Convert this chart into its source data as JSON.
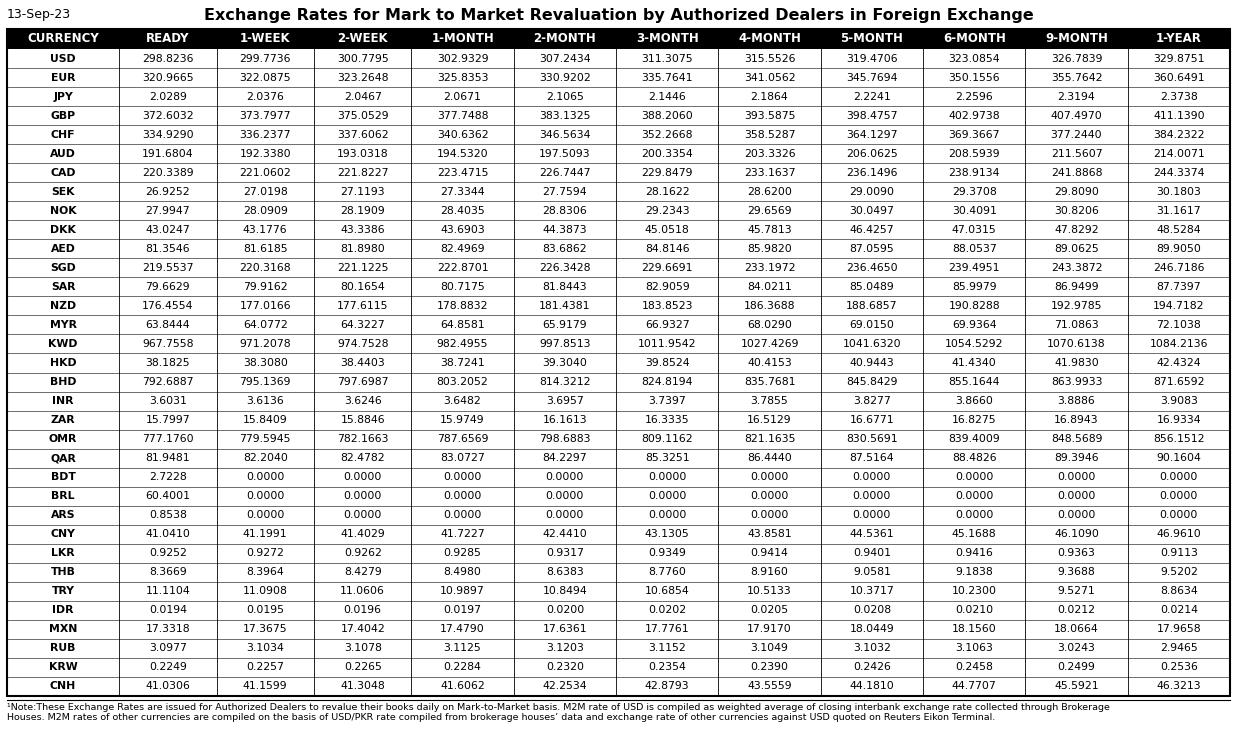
{
  "date": "13-Sep-23",
  "title": "Exchange Rates for Mark to Market Revaluation by Authorized Dealers in Foreign Exchange",
  "columns": [
    "CURRENCY",
    "READY",
    "1-WEEK",
    "2-WEEK",
    "1-MONTH",
    "2-MONTH",
    "3-MONTH",
    "4-MONTH",
    "5-MONTH",
    "6-MONTH",
    "9-MONTH",
    "1-YEAR"
  ],
  "rows": [
    [
      "USD",
      "298.8236",
      "299.7736",
      "300.7795",
      "302.9329",
      "307.2434",
      "311.3075",
      "315.5526",
      "319.4706",
      "323.0854",
      "326.7839",
      "329.8751"
    ],
    [
      "EUR",
      "320.9665",
      "322.0875",
      "323.2648",
      "325.8353",
      "330.9202",
      "335.7641",
      "341.0562",
      "345.7694",
      "350.1556",
      "355.7642",
      "360.6491"
    ],
    [
      "JPY",
      "2.0289",
      "2.0376",
      "2.0467",
      "2.0671",
      "2.1065",
      "2.1446",
      "2.1864",
      "2.2241",
      "2.2596",
      "2.3194",
      "2.3738"
    ],
    [
      "GBP",
      "372.6032",
      "373.7977",
      "375.0529",
      "377.7488",
      "383.1325",
      "388.2060",
      "393.5875",
      "398.4757",
      "402.9738",
      "407.4970",
      "411.1390"
    ],
    [
      "CHF",
      "334.9290",
      "336.2377",
      "337.6062",
      "340.6362",
      "346.5634",
      "352.2668",
      "358.5287",
      "364.1297",
      "369.3667",
      "377.2440",
      "384.2322"
    ],
    [
      "AUD",
      "191.6804",
      "192.3380",
      "193.0318",
      "194.5320",
      "197.5093",
      "200.3354",
      "203.3326",
      "206.0625",
      "208.5939",
      "211.5607",
      "214.0071"
    ],
    [
      "CAD",
      "220.3389",
      "221.0602",
      "221.8227",
      "223.4715",
      "226.7447",
      "229.8479",
      "233.1637",
      "236.1496",
      "238.9134",
      "241.8868",
      "244.3374"
    ],
    [
      "SEK",
      "26.9252",
      "27.0198",
      "27.1193",
      "27.3344",
      "27.7594",
      "28.1622",
      "28.6200",
      "29.0090",
      "29.3708",
      "29.8090",
      "30.1803"
    ],
    [
      "NOK",
      "27.9947",
      "28.0909",
      "28.1909",
      "28.4035",
      "28.8306",
      "29.2343",
      "29.6569",
      "30.0497",
      "30.4091",
      "30.8206",
      "31.1617"
    ],
    [
      "DKK",
      "43.0247",
      "43.1776",
      "43.3386",
      "43.6903",
      "44.3873",
      "45.0518",
      "45.7813",
      "46.4257",
      "47.0315",
      "47.8292",
      "48.5284"
    ],
    [
      "AED",
      "81.3546",
      "81.6185",
      "81.8980",
      "82.4969",
      "83.6862",
      "84.8146",
      "85.9820",
      "87.0595",
      "88.0537",
      "89.0625",
      "89.9050"
    ],
    [
      "SGD",
      "219.5537",
      "220.3168",
      "221.1225",
      "222.8701",
      "226.3428",
      "229.6691",
      "233.1972",
      "236.4650",
      "239.4951",
      "243.3872",
      "246.7186"
    ],
    [
      "SAR",
      "79.6629",
      "79.9162",
      "80.1654",
      "80.7175",
      "81.8443",
      "82.9059",
      "84.0211",
      "85.0489",
      "85.9979",
      "86.9499",
      "87.7397"
    ],
    [
      "NZD",
      "176.4554",
      "177.0166",
      "177.6115",
      "178.8832",
      "181.4381",
      "183.8523",
      "186.3688",
      "188.6857",
      "190.8288",
      "192.9785",
      "194.7182"
    ],
    [
      "MYR",
      "63.8444",
      "64.0772",
      "64.3227",
      "64.8581",
      "65.9179",
      "66.9327",
      "68.0290",
      "69.0150",
      "69.9364",
      "71.0863",
      "72.1038"
    ],
    [
      "KWD",
      "967.7558",
      "971.2078",
      "974.7528",
      "982.4955",
      "997.8513",
      "1011.9542",
      "1027.4269",
      "1041.6320",
      "1054.5292",
      "1070.6138",
      "1084.2136"
    ],
    [
      "HKD",
      "38.1825",
      "38.3080",
      "38.4403",
      "38.7241",
      "39.3040",
      "39.8524",
      "40.4153",
      "40.9443",
      "41.4340",
      "41.9830",
      "42.4324"
    ],
    [
      "BHD",
      "792.6887",
      "795.1369",
      "797.6987",
      "803.2052",
      "814.3212",
      "824.8194",
      "835.7681",
      "845.8429",
      "855.1644",
      "863.9933",
      "871.6592"
    ],
    [
      "INR",
      "3.6031",
      "3.6136",
      "3.6246",
      "3.6482",
      "3.6957",
      "3.7397",
      "3.7855",
      "3.8277",
      "3.8660",
      "3.8886",
      "3.9083"
    ],
    [
      "ZAR",
      "15.7997",
      "15.8409",
      "15.8846",
      "15.9749",
      "16.1613",
      "16.3335",
      "16.5129",
      "16.6771",
      "16.8275",
      "16.8943",
      "16.9334"
    ],
    [
      "OMR",
      "777.1760",
      "779.5945",
      "782.1663",
      "787.6569",
      "798.6883",
      "809.1162",
      "821.1635",
      "830.5691",
      "839.4009",
      "848.5689",
      "856.1512"
    ],
    [
      "QAR",
      "81.9481",
      "82.2040",
      "82.4782",
      "83.0727",
      "84.2297",
      "85.3251",
      "86.4440",
      "87.5164",
      "88.4826",
      "89.3946",
      "90.1604"
    ],
    [
      "BDT",
      "2.7228",
      "0.0000",
      "0.0000",
      "0.0000",
      "0.0000",
      "0.0000",
      "0.0000",
      "0.0000",
      "0.0000",
      "0.0000",
      "0.0000"
    ],
    [
      "BRL",
      "60.4001",
      "0.0000",
      "0.0000",
      "0.0000",
      "0.0000",
      "0.0000",
      "0.0000",
      "0.0000",
      "0.0000",
      "0.0000",
      "0.0000"
    ],
    [
      "ARS",
      "0.8538",
      "0.0000",
      "0.0000",
      "0.0000",
      "0.0000",
      "0.0000",
      "0.0000",
      "0.0000",
      "0.0000",
      "0.0000",
      "0.0000"
    ],
    [
      "CNY",
      "41.0410",
      "41.1991",
      "41.4029",
      "41.7227",
      "42.4410",
      "43.1305",
      "43.8581",
      "44.5361",
      "45.1688",
      "46.1090",
      "46.9610"
    ],
    [
      "LKR",
      "0.9252",
      "0.9272",
      "0.9262",
      "0.9285",
      "0.9317",
      "0.9349",
      "0.9414",
      "0.9401",
      "0.9416",
      "0.9363",
      "0.9113"
    ],
    [
      "THB",
      "8.3669",
      "8.3964",
      "8.4279",
      "8.4980",
      "8.6383",
      "8.7760",
      "8.9160",
      "9.0581",
      "9.1838",
      "9.3688",
      "9.5202"
    ],
    [
      "TRY",
      "11.1104",
      "11.0908",
      "11.0606",
      "10.9897",
      "10.8494",
      "10.6854",
      "10.5133",
      "10.3717",
      "10.2300",
      "9.5271",
      "8.8634"
    ],
    [
      "IDR",
      "0.0194",
      "0.0195",
      "0.0196",
      "0.0197",
      "0.0200",
      "0.0202",
      "0.0205",
      "0.0208",
      "0.0210",
      "0.0212",
      "0.0214"
    ],
    [
      "MXN",
      "17.3318",
      "17.3675",
      "17.4042",
      "17.4790",
      "17.6361",
      "17.7761",
      "17.9170",
      "18.0449",
      "18.1560",
      "18.0664",
      "17.9658"
    ],
    [
      "RUB",
      "3.0977",
      "3.1034",
      "3.1078",
      "3.1125",
      "3.1203",
      "3.1152",
      "3.1049",
      "3.1032",
      "3.1063",
      "3.0243",
      "2.9465"
    ],
    [
      "KRW",
      "0.2249",
      "0.2257",
      "0.2265",
      "0.2284",
      "0.2320",
      "0.2354",
      "0.2390",
      "0.2426",
      "0.2458",
      "0.2499",
      "0.2536"
    ],
    [
      "CNH",
      "41.0306",
      "41.1599",
      "41.3048",
      "41.6062",
      "42.2534",
      "42.8793",
      "43.5559",
      "44.1810",
      "44.7707",
      "45.5921",
      "46.3213"
    ]
  ],
  "note_line1": "¹Note:These Exchange Rates are issued for Authorized Dealers to revalue their books daily on Mark-to-Market basis. M2M rate of USD is compiled as weighted average of closing interbank exchange rate collected through Brokerage",
  "note_line2": "Houses. M2M rates of other currencies are compiled on the basis of USD/PKR rate compiled from brokerage houses’ data and exchange rate of other currencies against USD quoted on Reuters Eikon Terminal.",
  "header_bg": "#000000",
  "header_fg": "#ffffff",
  "row_bg": "#ffffff",
  "border_color": "#000000",
  "title_fontsize": 11.5,
  "date_fontsize": 9,
  "header_fontsize": 8.5,
  "cell_fontsize": 7.8,
  "note_fontsize": 6.8,
  "col_widths_rel": [
    1.15,
    1.0,
    1.0,
    1.0,
    1.05,
    1.05,
    1.05,
    1.05,
    1.05,
    1.05,
    1.05,
    1.05
  ]
}
